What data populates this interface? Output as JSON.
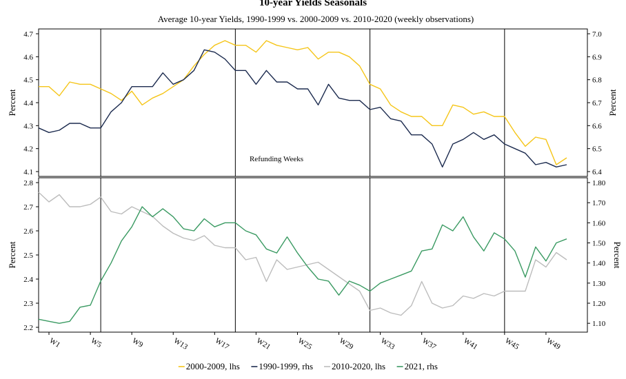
{
  "chart_data": {
    "title": "10-year Yields Seasonals",
    "subtitle": "Average 10-year Yields, 1990-1999 vs. 2000-2009 vs. 2010-2020 (weekly observations)",
    "x_tick_labels": [
      "W1",
      "W5",
      "W9",
      "W13",
      "W17",
      "W21",
      "W25",
      "W29",
      "W33",
      "W37",
      "W41",
      "W45",
      "W49"
    ],
    "x_tick_weeks": [
      1,
      5,
      9,
      13,
      17,
      21,
      25,
      29,
      33,
      37,
      41,
      45,
      49
    ],
    "x_range": [
      0,
      53
    ],
    "refunding_weeks": [
      6,
      19,
      32,
      45
    ],
    "annotation": "Refunding Weeks",
    "legend_placement": "bottom",
    "grid": false,
    "panels": [
      {
        "type": "line",
        "left_axis": {
          "label": "Percent",
          "ylim": [
            4.1,
            4.7
          ],
          "ticks": [
            "4.1",
            "4.2",
            "4.3",
            "4.4",
            "4.5",
            "4.6",
            "4.7"
          ]
        },
        "right_axis": {
          "label": "Percent",
          "ylim": [
            6.4,
            7.0
          ],
          "ticks": [
            "6.4",
            "6.5",
            "6.6",
            "6.7",
            "6.8",
            "6.9",
            "7.0"
          ]
        },
        "series": [
          {
            "name": "2000-2009, lhs",
            "axis": "left",
            "color": "#f5c518",
            "start_week": 0,
            "values": [
              4.47,
              4.47,
              4.43,
              4.49,
              4.48,
              4.48,
              4.46,
              4.44,
              4.41,
              4.45,
              4.39,
              4.42,
              4.44,
              4.47,
              4.5,
              4.56,
              4.61,
              4.65,
              4.67,
              4.65,
              4.65,
              4.62,
              4.67,
              4.65,
              4.64,
              4.63,
              4.64,
              4.59,
              4.62,
              4.62,
              4.6,
              4.56,
              4.48,
              4.46,
              4.39,
              4.36,
              4.34,
              4.34,
              4.3,
              4.3,
              4.39,
              4.38,
              4.35,
              4.36,
              4.34,
              4.34,
              4.27,
              4.21,
              4.25,
              4.24,
              4.13,
              4.16
            ]
          },
          {
            "name": "1990-1999, rhs",
            "axis": "right",
            "color": "#1b2a4e",
            "start_week": 0,
            "values": [
              6.59,
              6.57,
              6.58,
              6.61,
              6.61,
              6.59,
              6.59,
              6.66,
              6.7,
              6.77,
              6.77,
              6.77,
              6.83,
              6.78,
              6.8,
              6.84,
              6.93,
              6.92,
              6.89,
              6.84,
              6.84,
              6.78,
              6.84,
              6.79,
              6.79,
              6.76,
              6.76,
              6.69,
              6.78,
              6.72,
              6.71,
              6.71,
              6.67,
              6.68,
              6.63,
              6.62,
              6.56,
              6.56,
              6.52,
              6.42,
              6.52,
              6.54,
              6.57,
              6.54,
              6.56,
              6.52,
              6.5,
              6.48,
              6.43,
              6.44,
              6.42,
              6.43
            ]
          }
        ]
      },
      {
        "type": "line",
        "left_axis": {
          "label": "Percent",
          "ylim": [
            2.2,
            2.8
          ],
          "ticks": [
            "2.2",
            "2.3",
            "2.4",
            "2.5",
            "2.6",
            "2.7",
            "2.8"
          ]
        },
        "right_axis": {
          "label": "Percent",
          "ylim": [
            1.08,
            1.8
          ],
          "ticks": [
            "1.10",
            "1.20",
            "1.30",
            "1.40",
            "1.50",
            "1.60",
            "1.70",
            "1.80"
          ]
        },
        "series": [
          {
            "name": "2010-2020, lhs",
            "axis": "left",
            "color": "#bcbcbc",
            "start_week": 0,
            "values": [
              2.76,
              2.72,
              2.75,
              2.7,
              2.7,
              2.71,
              2.74,
              2.68,
              2.67,
              2.7,
              2.68,
              2.66,
              2.62,
              2.59,
              2.57,
              2.56,
              2.58,
              2.54,
              2.53,
              2.53,
              2.48,
              2.49,
              2.39,
              2.48,
              2.44,
              2.45,
              2.46,
              2.47,
              2.44,
              2.41,
              2.38,
              2.35,
              2.27,
              2.28,
              2.26,
              2.25,
              2.29,
              2.39,
              2.3,
              2.28,
              2.29,
              2.33,
              2.32,
              2.34,
              2.33,
              2.35,
              2.35,
              2.35,
              2.48,
              2.45,
              2.51,
              2.48
            ]
          },
          {
            "name": "2021, rhs",
            "axis": "right",
            "color": "#3a9a62",
            "start_week": 0,
            "values": [
              1.12,
              1.11,
              1.1,
              1.11,
              1.18,
              1.19,
              1.31,
              1.4,
              1.51,
              1.58,
              1.68,
              1.63,
              1.67,
              1.63,
              1.57,
              1.56,
              1.62,
              1.58,
              1.6,
              1.6,
              1.56,
              1.54,
              1.47,
              1.45,
              1.53,
              1.45,
              1.38,
              1.32,
              1.31,
              1.24,
              1.31,
              1.29,
              1.26,
              1.3,
              1.32,
              1.34,
              1.36,
              1.46,
              1.47,
              1.59,
              1.56,
              1.63,
              1.53,
              1.46,
              1.55,
              1.52,
              1.46,
              1.33,
              1.48,
              1.41,
              1.5,
              1.52
            ]
          }
        ]
      }
    ],
    "legend": [
      {
        "name": "2000-2009, lhs",
        "color": "#f5c518"
      },
      {
        "name": "1990-1999, rhs",
        "color": "#1b2a4e"
      },
      {
        "name": "2010-2020, lhs",
        "color": "#bcbcbc"
      },
      {
        "name": "2021, rhs",
        "color": "#3a9a62"
      }
    ]
  }
}
